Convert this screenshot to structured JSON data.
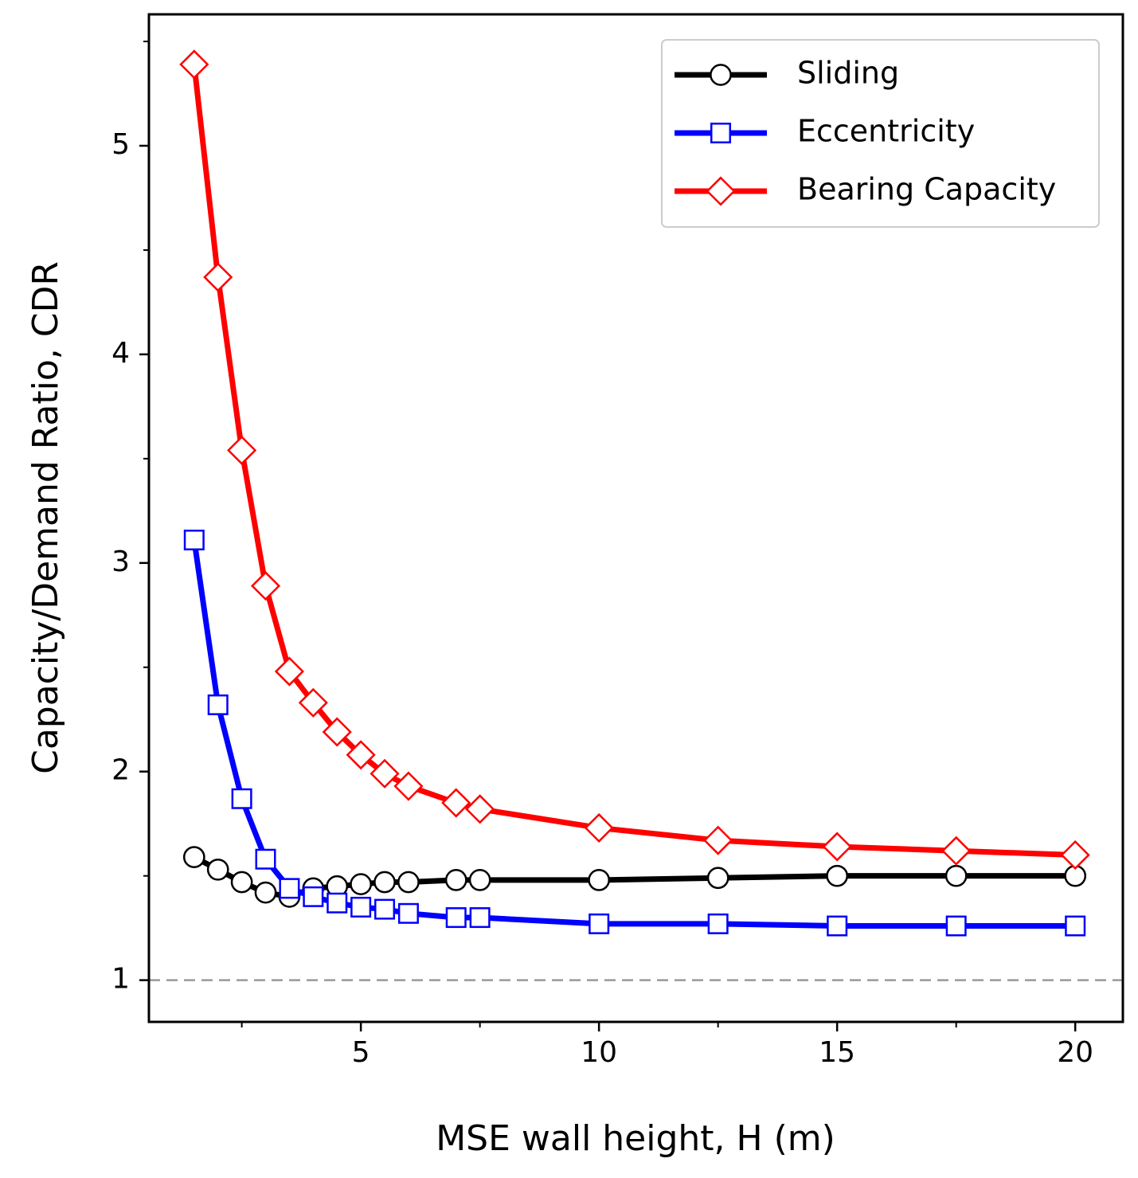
{
  "chart_data": {
    "type": "line",
    "xlabel": "MSE wall height, H (m)",
    "ylabel": "Capacity/Demand Ratio, CDR",
    "x": [
      1.5,
      2,
      2.5,
      3,
      3.5,
      4,
      4.5,
      5,
      5.5,
      6,
      7,
      7.5,
      10,
      12.5,
      15,
      17.5,
      20
    ],
    "series": [
      {
        "name": "Sliding",
        "color": "#000000",
        "marker": "circle",
        "values": [
          1.59,
          1.53,
          1.47,
          1.42,
          1.4,
          1.44,
          1.45,
          1.46,
          1.47,
          1.47,
          1.48,
          1.48,
          1.48,
          1.49,
          1.5,
          1.5,
          1.5
        ]
      },
      {
        "name": "Eccentricity",
        "color": "#0000ff",
        "marker": "square",
        "values": [
          3.11,
          2.32,
          1.87,
          1.58,
          1.44,
          1.4,
          1.37,
          1.35,
          1.34,
          1.32,
          1.3,
          1.3,
          1.27,
          1.27,
          1.26,
          1.26,
          1.26
        ]
      },
      {
        "name": "Bearing Capacity",
        "color": "#ff0000",
        "marker": "diamond",
        "values": [
          5.39,
          4.37,
          3.54,
          2.89,
          2.48,
          2.33,
          2.19,
          2.08,
          1.99,
          1.93,
          1.85,
          1.82,
          1.73,
          1.67,
          1.64,
          1.62,
          1.6
        ]
      }
    ],
    "xlim": [
      0.55,
      21.0
    ],
    "xticks": [
      5,
      10,
      15,
      20
    ],
    "xminorticks": [
      2.5,
      7.5,
      12.5,
      17.5
    ],
    "ylim": [
      0.8,
      5.63
    ],
    "yticks": [
      1,
      2,
      3,
      4,
      5
    ],
    "yminorticks": [
      1.5,
      2.5,
      3.5,
      4.5,
      5.5
    ],
    "reference_line": {
      "value": 1,
      "color": "#999999",
      "style": "dashed"
    },
    "legend": "upper right",
    "grid": false
  }
}
